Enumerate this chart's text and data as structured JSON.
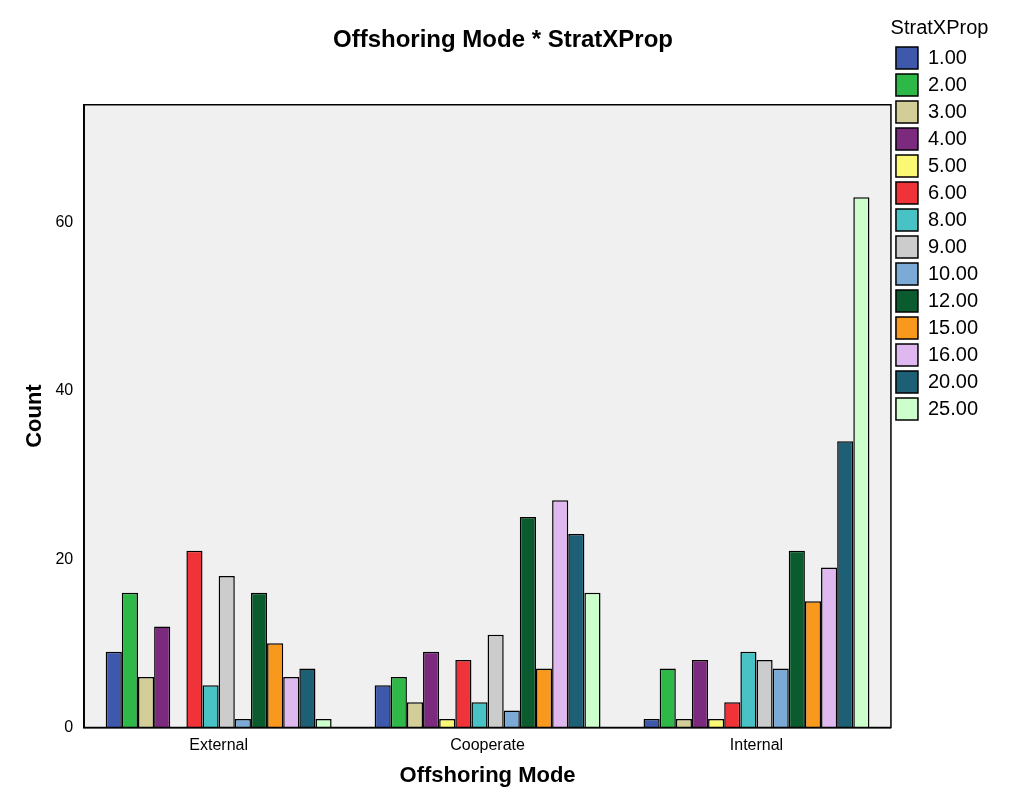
{
  "chart_data": {
    "type": "bar",
    "title": "Offshoring Mode * StratXProp",
    "xlabel": "Offshoring Mode",
    "ylabel": "Count",
    "legend_title": "StratXProp",
    "legend": "right",
    "categories": [
      "External",
      "Cooperate",
      "Internal"
    ],
    "ylim": [
      0,
      74
    ],
    "yticks": [
      0,
      20,
      40,
      60
    ],
    "grid": false,
    "series": [
      {
        "name": "1.00",
        "color": "#3e58ac",
        "values": [
          9,
          5,
          1
        ]
      },
      {
        "name": "2.00",
        "color": "#2eb848",
        "values": [
          16,
          6,
          7
        ]
      },
      {
        "name": "3.00",
        "color": "#d3ce97",
        "values": [
          6,
          3,
          1
        ]
      },
      {
        "name": "4.00",
        "color": "#7b2a7e",
        "values": [
          12,
          9,
          8
        ]
      },
      {
        "name": "5.00",
        "color": "#fbf873",
        "values": [
          null,
          1,
          1
        ]
      },
      {
        "name": "6.00",
        "color": "#ef3338",
        "values": [
          21,
          8,
          3
        ]
      },
      {
        "name": "8.00",
        "color": "#48c2c5",
        "values": [
          5,
          3,
          9
        ]
      },
      {
        "name": "9.00",
        "color": "#cccccc",
        "values": [
          18,
          11,
          8
        ]
      },
      {
        "name": "10.00",
        "color": "#7aaad5",
        "values": [
          1,
          2,
          7
        ]
      },
      {
        "name": "12.00",
        "color": "#0a5b2d",
        "values": [
          16,
          25,
          21
        ]
      },
      {
        "name": "15.00",
        "color": "#f8981d",
        "values": [
          10,
          7,
          15
        ]
      },
      {
        "name": "16.00",
        "color": "#dfb8ef",
        "values": [
          6,
          27,
          19
        ]
      },
      {
        "name": "20.00",
        "color": "#1d5f75",
        "values": [
          7,
          23,
          34
        ]
      },
      {
        "name": "25.00",
        "color": "#ccffcc",
        "values": [
          1,
          16,
          63
        ]
      }
    ]
  }
}
